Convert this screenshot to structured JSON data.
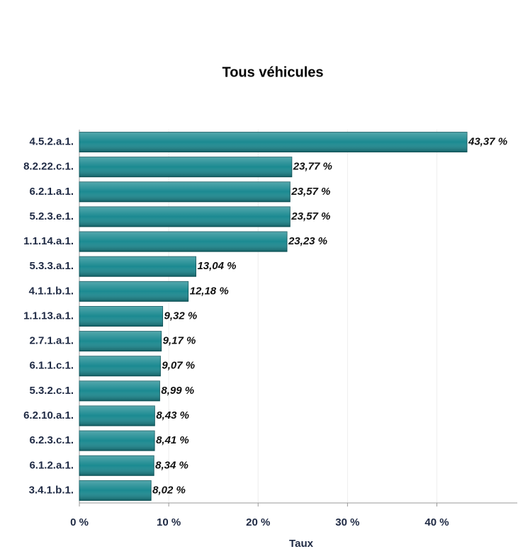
{
  "chart_data": {
    "type": "bar",
    "orientation": "horizontal",
    "title": "Tous véhicules",
    "x_label": "Taux",
    "categories": [
      "4.5.2.a.1.",
      "8.2.22.c.1.",
      "6.2.1.a.1.",
      "5.2.3.e.1.",
      "1.1.14.a.1.",
      "5.3.3.a.1.",
      "4.1.1.b.1.",
      "1.1.13.a.1.",
      "2.7.1.a.1.",
      "6.1.1.c.1.",
      "5.3.2.c.1.",
      "6.2.10.a.1.",
      "6.2.3.c.1.",
      "6.1.2.a.1.",
      "3.4.1.b.1."
    ],
    "values": [
      43.37,
      23.77,
      23.57,
      23.57,
      23.23,
      13.04,
      12.18,
      9.32,
      9.17,
      9.07,
      8.99,
      8.43,
      8.41,
      8.34,
      8.02
    ],
    "value_labels": [
      "43,37 %",
      "23,77 %",
      "23,57 %",
      "23,57 %",
      "23,23 %",
      "13,04 %",
      "12,18 %",
      "9,32 %",
      "9,17 %",
      "9,07 %",
      "8,99 %",
      "8,43 %",
      "8,41 %",
      "8,34 %",
      "8,02 %"
    ],
    "color": "#1b8a91",
    "xlim": [
      0,
      49
    ],
    "xticks": [
      {
        "value": 0,
        "label": "0 %"
      },
      {
        "value": 10,
        "label": "10 %"
      },
      {
        "value": 20,
        "label": "20 %"
      },
      {
        "value": 30,
        "label": "30 %"
      },
      {
        "value": 40,
        "label": "40 %"
      }
    ],
    "grid": true
  }
}
